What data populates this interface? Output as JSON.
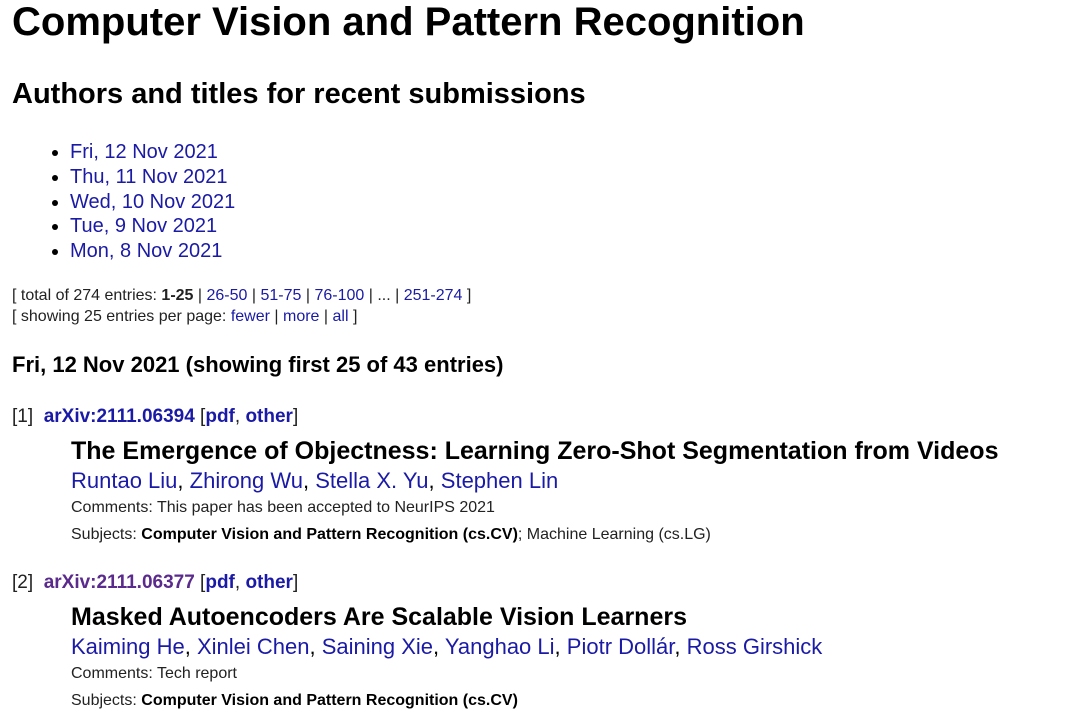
{
  "page_title": "Computer Vision and Pattern Recognition",
  "subtitle": "Authors and titles for recent submissions",
  "dates": [
    "Fri, 12 Nov 2021",
    "Thu, 11 Nov 2021",
    "Wed, 10 Nov 2021",
    "Tue, 9 Nov 2021",
    "Mon, 8 Nov 2021"
  ],
  "pagination": {
    "total_prefix": "[ total of 274 entries: ",
    "current": "1-25",
    "pages": [
      "26-50",
      "51-75",
      "76-100"
    ],
    "ellipsis": "...",
    "last": "251-274",
    "showing_prefix": "[ showing 25 entries per page: ",
    "fewer": "fewer",
    "more": "more",
    "all": "all"
  },
  "section_heading": "Fri, 12 Nov 2021 (showing first 25 of 43 entries)",
  "entries": [
    {
      "index": "[1]",
      "id": "arXiv:2111.06394",
      "pdf": "pdf",
      "other": "other",
      "title": "The Emergence of Objectness: Learning Zero-Shot Segmentation from Videos",
      "authors": [
        "Runtao Liu",
        "Zhirong Wu",
        "Stella X. Yu",
        "Stephen Lin"
      ],
      "comments_label": "Comments:",
      "comments": "This paper has been accepted to NeurIPS 2021",
      "subjects_label": "Subjects:",
      "primary_subject": "Computer Vision and Pattern Recognition (cs.CV)",
      "other_subjects": "; Machine Learning (cs.LG)"
    },
    {
      "index": "[2]",
      "id": "arXiv:2111.06377",
      "pdf": "pdf",
      "other": "other",
      "title": "Masked Autoencoders Are Scalable Vision Learners",
      "authors": [
        "Kaiming He",
        "Xinlei Chen",
        "Saining Xie",
        "Yanghao Li",
        "Piotr Dollár",
        "Ross Girshick"
      ],
      "comments_label": "Comments:",
      "comments": "Tech report",
      "subjects_label": "Subjects:",
      "primary_subject": "Computer Vision and Pattern Recognition (cs.CV)",
      "other_subjects": ""
    }
  ]
}
